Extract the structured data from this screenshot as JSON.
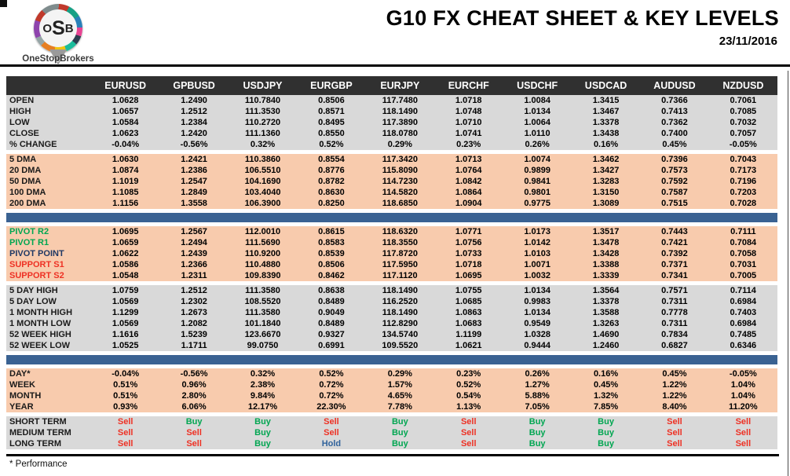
{
  "brand": {
    "logo_letters": {
      "o": "O",
      "s": "S",
      "b": "B"
    },
    "logo_name": "OneStopBrokers"
  },
  "header": {
    "title": "G10 FX CHEAT SHEET & KEY LEVELS",
    "date": "23/11/2016"
  },
  "colors": {
    "header_bar": "#303030",
    "section_gray": "#D9D9D9",
    "section_peach": "#F8CBAD",
    "divider_blue": "#3A6292",
    "buy_green": "#00A651",
    "sell_red": "#EE3124",
    "hold_blue": "#31639C",
    "pivot_resistance_green": "#00A651",
    "pivot_point_navy": "#1F3864",
    "support_red": "#EE3124"
  },
  "table": {
    "columns": [
      "EURUSD",
      "GPBUSD",
      "USDJPY",
      "EURGBP",
      "EURJPY",
      "EURCHF",
      "USDCHF",
      "USDCAD",
      "AUDUSD",
      "NZDUSD"
    ],
    "sections": [
      {
        "type": "rows",
        "name": "ohlc",
        "bg": "gray",
        "rows": [
          {
            "label": "OPEN",
            "values": [
              "1.0628",
              "1.2490",
              "110.7840",
              "0.8506",
              "117.7480",
              "1.0718",
              "1.0084",
              "1.3415",
              "0.7366",
              "0.7061"
            ]
          },
          {
            "label": "HIGH",
            "values": [
              "1.0657",
              "1.2512",
              "111.3530",
              "0.8571",
              "118.1490",
              "1.0748",
              "1.0134",
              "1.3467",
              "0.7413",
              "0.7085"
            ]
          },
          {
            "label": "LOW",
            "values": [
              "1.0584",
              "1.2384",
              "110.2720",
              "0.8495",
              "117.3890",
              "1.0710",
              "1.0064",
              "1.3378",
              "0.7362",
              "0.7032"
            ]
          },
          {
            "label": "CLOSE",
            "values": [
              "1.0623",
              "1.2420",
              "111.1360",
              "0.8550",
              "118.0780",
              "1.0741",
              "1.0110",
              "1.3438",
              "0.7400",
              "0.7057"
            ]
          },
          {
            "label": "% CHANGE",
            "values": [
              "-0.04%",
              "-0.56%",
              "0.32%",
              "0.52%",
              "0.29%",
              "0.23%",
              "0.26%",
              "0.16%",
              "0.45%",
              "-0.05%"
            ]
          }
        ]
      },
      {
        "type": "rows",
        "name": "moving-averages",
        "bg": "peach",
        "rows": [
          {
            "label": "5 DMA",
            "values": [
              "1.0630",
              "1.2421",
              "110.3860",
              "0.8554",
              "117.3420",
              "1.0713",
              "1.0074",
              "1.3462",
              "0.7396",
              "0.7043"
            ]
          },
          {
            "label": "20 DMA",
            "values": [
              "1.0874",
              "1.2386",
              "106.5510",
              "0.8776",
              "115.8090",
              "1.0764",
              "0.9899",
              "1.3427",
              "0.7573",
              "0.7173"
            ]
          },
          {
            "label": "50 DMA",
            "values": [
              "1.1019",
              "1.2547",
              "104.1690",
              "0.8782",
              "114.7230",
              "1.0842",
              "0.9841",
              "1.3283",
              "0.7592",
              "0.7196"
            ]
          },
          {
            "label": "100 DMA",
            "values": [
              "1.1085",
              "1.2849",
              "103.4040",
              "0.8630",
              "114.5820",
              "1.0864",
              "0.9801",
              "1.3150",
              "0.7587",
              "0.7203"
            ]
          },
          {
            "label": "200 DMA",
            "values": [
              "1.1156",
              "1.3558",
              "106.3900",
              "0.8250",
              "118.6850",
              "1.0904",
              "0.9775",
              "1.3089",
              "0.7515",
              "0.7028"
            ]
          }
        ]
      },
      {
        "type": "bar"
      },
      {
        "type": "rows",
        "name": "pivots",
        "bg": "peach",
        "rows": [
          {
            "label": "PIVOT R2",
            "label_class": "green",
            "values": [
              "1.0695",
              "1.2567",
              "112.0010",
              "0.8615",
              "118.6320",
              "1.0771",
              "1.0173",
              "1.3517",
              "0.7443",
              "0.7111"
            ]
          },
          {
            "label": "PIVOT R1",
            "label_class": "green",
            "values": [
              "1.0659",
              "1.2494",
              "111.5690",
              "0.8583",
              "118.3550",
              "1.0756",
              "1.0142",
              "1.3478",
              "0.7421",
              "0.7084"
            ]
          },
          {
            "label": "PIVOT POINT",
            "label_class": "navy",
            "values": [
              "1.0622",
              "1.2439",
              "110.9200",
              "0.8539",
              "117.8720",
              "1.0733",
              "1.0103",
              "1.3428",
              "0.7392",
              "0.7058"
            ]
          },
          {
            "label": "SUPPORT S1",
            "label_class": "red",
            "values": [
              "1.0586",
              "1.2366",
              "110.4880",
              "0.8506",
              "117.5950",
              "1.0718",
              "1.0071",
              "1.3388",
              "0.7371",
              "0.7031"
            ]
          },
          {
            "label": "SUPPORT S2",
            "label_class": "red",
            "values": [
              "1.0548",
              "1.2311",
              "109.8390",
              "0.8462",
              "117.1120",
              "1.0695",
              "1.0032",
              "1.3339",
              "0.7341",
              "0.7005"
            ]
          }
        ]
      },
      {
        "type": "rows",
        "name": "ranges",
        "bg": "gray",
        "rows": [
          {
            "label": "5 DAY HIGH",
            "values": [
              "1.0759",
              "1.2512",
              "111.3580",
              "0.8638",
              "118.1490",
              "1.0755",
              "1.0134",
              "1.3564",
              "0.7571",
              "0.7114"
            ]
          },
          {
            "label": "5 DAY LOW",
            "values": [
              "1.0569",
              "1.2302",
              "108.5520",
              "0.8489",
              "116.2520",
              "1.0685",
              "0.9983",
              "1.3378",
              "0.7311",
              "0.6984"
            ]
          },
          {
            "label": "1 MONTH HIGH",
            "values": [
              "1.1299",
              "1.2673",
              "111.3580",
              "0.9049",
              "118.1490",
              "1.0863",
              "1.0134",
              "1.3588",
              "0.7778",
              "0.7403"
            ]
          },
          {
            "label": "1 MONTH LOW",
            "values": [
              "1.0569",
              "1.2082",
              "101.1840",
              "0.8489",
              "112.8290",
              "1.0683",
              "0.9549",
              "1.3263",
              "0.7311",
              "0.6984"
            ]
          },
          {
            "label": "52 WEEK HIGH",
            "values": [
              "1.1616",
              "1.5239",
              "123.6670",
              "0.9327",
              "134.5740",
              "1.1199",
              "1.0328",
              "1.4690",
              "0.7834",
              "0.7485"
            ]
          },
          {
            "label": "52 WEEK LOW",
            "values": [
              "1.0525",
              "1.1711",
              "99.0750",
              "0.6991",
              "109.5520",
              "1.0621",
              "0.9444",
              "1.2460",
              "0.6827",
              "0.6346"
            ]
          }
        ]
      },
      {
        "type": "bar"
      },
      {
        "type": "rows",
        "name": "performance",
        "bg": "peach",
        "rows": [
          {
            "label": "DAY*",
            "values": [
              "-0.04%",
              "-0.56%",
              "0.32%",
              "0.52%",
              "0.29%",
              "0.23%",
              "0.26%",
              "0.16%",
              "0.45%",
              "-0.05%"
            ]
          },
          {
            "label": "WEEK",
            "values": [
              "0.51%",
              "0.96%",
              "2.38%",
              "0.72%",
              "1.57%",
              "0.52%",
              "1.27%",
              "0.45%",
              "1.22%",
              "1.04%"
            ]
          },
          {
            "label": "MONTH",
            "values": [
              "0.51%",
              "2.80%",
              "9.84%",
              "0.72%",
              "4.65%",
              "0.54%",
              "5.88%",
              "1.32%",
              "1.22%",
              "1.04%"
            ]
          },
          {
            "label": "YEAR",
            "values": [
              "0.93%",
              "6.06%",
              "12.17%",
              "22.30%",
              "7.78%",
              "1.13%",
              "7.05%",
              "7.85%",
              "8.40%",
              "11.20%"
            ]
          }
        ]
      },
      {
        "type": "rows",
        "name": "signals",
        "bg": "gray",
        "signal": true,
        "rows": [
          {
            "label": "SHORT TERM",
            "values": [
              "Sell",
              "Buy",
              "Buy",
              "Sell",
              "Buy",
              "Sell",
              "Buy",
              "Buy",
              "Sell",
              "Sell"
            ]
          },
          {
            "label": "MEDIUM TERM",
            "values": [
              "Sell",
              "Sell",
              "Buy",
              "Sell",
              "Buy",
              "Sell",
              "Buy",
              "Buy",
              "Sell",
              "Sell"
            ]
          },
          {
            "label": "LONG TERM",
            "values": [
              "Sell",
              "Sell",
              "Buy",
              "Hold",
              "Buy",
              "Sell",
              "Buy",
              "Buy",
              "Sell",
              "Sell"
            ]
          }
        ]
      }
    ]
  },
  "footnote": "* Performance"
}
